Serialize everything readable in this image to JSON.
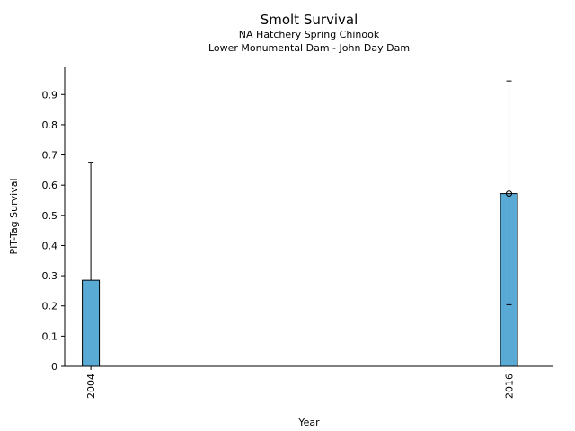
{
  "chart_data": {
    "type": "bar",
    "title": "Smolt Survival",
    "subtitle_lines": [
      "NA Hatchery Spring Chinook",
      "Lower Monumental Dam - John Day Dam"
    ],
    "xlabel": "Year",
    "ylabel": "PIT-Tag Survival",
    "categories": [
      "2004",
      "2016"
    ],
    "values": [
      0.285,
      0.572
    ],
    "error_bars": [
      {
        "low": null,
        "high": 0.676
      },
      {
        "low": 0.204,
        "high": 0.945
      }
    ],
    "point_marker_years": [
      "2016"
    ],
    "ylim": [
      0,
      0.99
    ],
    "yticks": [
      0,
      0.1,
      0.2,
      0.3,
      0.4,
      0.5,
      0.6,
      0.7,
      0.8,
      0.9
    ],
    "ytick_labels": [
      "0",
      "0.1",
      "0.2",
      "0.3",
      "0.4",
      "0.5",
      "0.6",
      "0.7",
      "0.8",
      "0.9"
    ],
    "x_axis_type": "year",
    "x_domain": [
      2003.25,
      2017.25
    ],
    "grid": false,
    "bar_color": "#5aaad6",
    "edge_color": "#000000"
  }
}
